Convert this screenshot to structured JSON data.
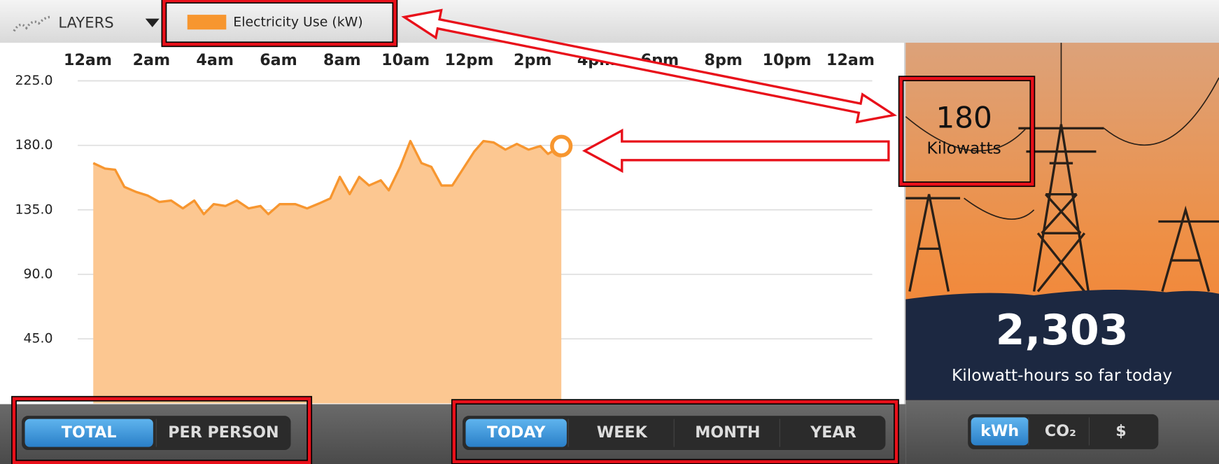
{
  "toolbar": {
    "layers": "LAYERS"
  },
  "chart_data": {
    "type": "area",
    "series": [
      {
        "name": "Electricity Use  (kW)",
        "color": "#f7962f",
        "fill_color": "#fcc791",
        "values": [
          167.6,
          163.8,
          163,
          151,
          147.5,
          145,
          140.5,
          141.5,
          136,
          141.5,
          132,
          139,
          137.7,
          141.5,
          136,
          137.7,
          132,
          139,
          139,
          136,
          139.4,
          143,
          158,
          146,
          158,
          152,
          155.6,
          148.6,
          165,
          183,
          167.6,
          165,
          152,
          152,
          163,
          175.7,
          183,
          182,
          177,
          181,
          177,
          179.5,
          174,
          179.5
        ]
      }
    ],
    "x": [
      0.17,
      0.54,
      0.86,
      1.15,
      1.52,
      1.88,
      2.25,
      2.62,
      2.99,
      3.35,
      3.65,
      3.96,
      4.33,
      4.69,
      5.06,
      5.43,
      5.68,
      6.04,
      6.53,
      6.9,
      7.27,
      7.63,
      7.93,
      8.24,
      8.54,
      8.85,
      9.22,
      9.47,
      9.83,
      10.15,
      10.5,
      10.81,
      11.13,
      11.47,
      11.79,
      12.16,
      12.45,
      12.77,
      13.14,
      13.5,
      13.87,
      14.24,
      14.48,
      14.9
    ],
    "xlim": [
      0,
      24
    ],
    "xticks": [
      {
        "value": 0,
        "label": "12am"
      },
      {
        "value": 2,
        "label": "2am"
      },
      {
        "value": 4,
        "label": "4am"
      },
      {
        "value": 6,
        "label": "6am"
      },
      {
        "value": 8,
        "label": "8am"
      },
      {
        "value": 10,
        "label": "10am"
      },
      {
        "value": 12,
        "label": "12pm"
      },
      {
        "value": 14,
        "label": "2pm"
      },
      {
        "value": 16,
        "label": "4pm"
      },
      {
        "value": 18,
        "label": "6pm"
      },
      {
        "value": 20,
        "label": "8pm"
      },
      {
        "value": 22,
        "label": "10pm"
      },
      {
        "value": 24,
        "label": "12am"
      }
    ],
    "ylim": [
      0,
      225
    ],
    "yticks": [
      {
        "value": 225,
        "label": "225.0"
      },
      {
        "value": 180,
        "label": "180.0"
      },
      {
        "value": 135,
        "label": "135.0"
      },
      {
        "value": 90,
        "label": "90.0"
      },
      {
        "value": 45,
        "label": "45.0"
      }
    ],
    "grid": true
  },
  "current_reading": {
    "value": "180",
    "unit": "Kilowatts"
  },
  "total": {
    "value": "2,303",
    "label": "Kilowatt-hours so far today"
  },
  "mode_buttons": {
    "items": [
      "TOTAL",
      "PER PERSON"
    ],
    "active": 0
  },
  "period_buttons": {
    "items": [
      "TODAY",
      "WEEK",
      "MONTH",
      "YEAR"
    ],
    "active": 0
  },
  "unit_buttons": {
    "items": [
      "kWh",
      "CO₂",
      "$"
    ],
    "active": 0
  }
}
